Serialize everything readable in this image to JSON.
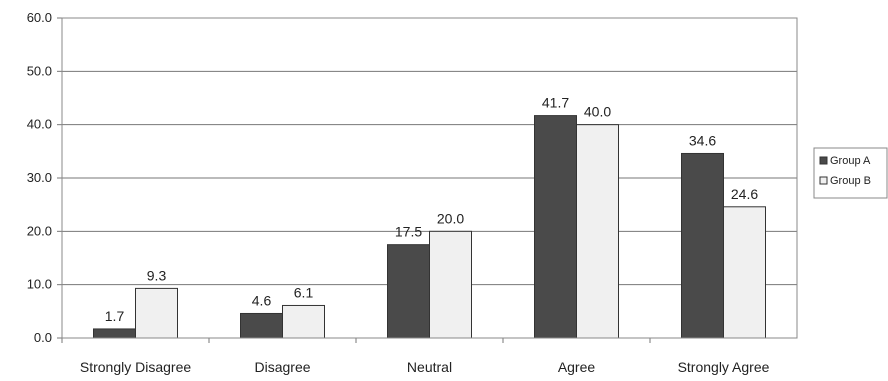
{
  "chart_data": {
    "type": "bar",
    "categories": [
      "Strongly Disagree",
      "Disagree",
      "Neutral",
      "Agree",
      "Strongly Agree"
    ],
    "series": [
      {
        "name": "Group A",
        "values": [
          1.7,
          4.6,
          17.5,
          41.7,
          34.6
        ],
        "color": "#4a4a4a"
      },
      {
        "name": "Group B",
        "values": [
          9.3,
          6.1,
          20.0,
          40.0,
          24.6
        ],
        "color": "#f0f0f0"
      }
    ],
    "data_labels": {
      "Group A": [
        "1.7",
        "4.6",
        "17.5",
        "41.7",
        "34.6"
      ],
      "Group B": [
        "9.3",
        "6.1",
        "20.0",
        "40.0",
        "24.6"
      ]
    },
    "ylim": [
      0,
      60
    ],
    "yticks": [
      0,
      10,
      20,
      30,
      40,
      50,
      60
    ],
    "ytick_labels": [
      "0.0",
      "10.0",
      "20.0",
      "30.0",
      "40.0",
      "50.0",
      "60.0"
    ],
    "title": "",
    "xlabel": "",
    "ylabel": "",
    "grid": true,
    "legend_position": "right"
  }
}
